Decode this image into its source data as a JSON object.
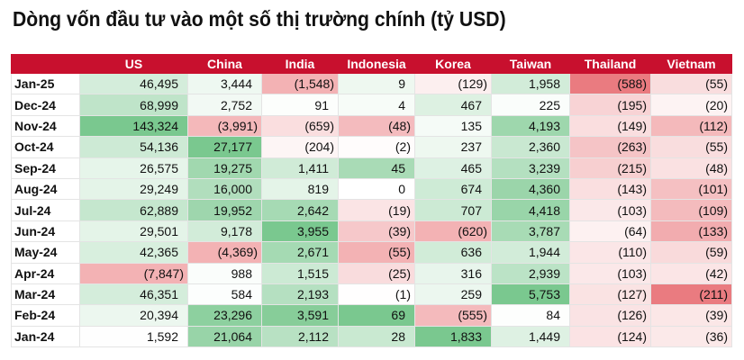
{
  "title": "Dòng vốn đầu tư vào một số thị trường chính (tỷ USD)",
  "table": {
    "header": [
      "",
      "US",
      "China",
      "India",
      "Indonesia",
      "Korea",
      "Taiwan",
      "Thailand",
      "Vietnam"
    ],
    "rows": [
      [
        "Jan-25",
        "46,495",
        "3,444",
        "(1,548)",
        "9",
        "(129)",
        "1,958",
        "(588)",
        "(55)"
      ],
      [
        "Dec-24",
        "68,999",
        "2,752",
        "91",
        "4",
        "467",
        "225",
        "(195)",
        "(20)"
      ],
      [
        "Nov-24",
        "143,324",
        "(3,991)",
        "(659)",
        "(48)",
        "135",
        "4,193",
        "(149)",
        "(112)"
      ],
      [
        "Oct-24",
        "54,136",
        "27,177",
        "(204)",
        "(2)",
        "237",
        "2,360",
        "(263)",
        "(55)"
      ],
      [
        "Sep-24",
        "26,575",
        "19,275",
        "1,411",
        "45",
        "465",
        "3,239",
        "(215)",
        "(48)"
      ],
      [
        "Aug-24",
        "29,249",
        "16,000",
        "819",
        "0",
        "674",
        "4,360",
        "(143)",
        "(101)"
      ],
      [
        "Jul-24",
        "62,889",
        "19,952",
        "2,642",
        "(19)",
        "707",
        "4,418",
        "(103)",
        "(109)"
      ],
      [
        "Jun-24",
        "29,501",
        "9,178",
        "3,955",
        "(39)",
        "(620)",
        "3,787",
        "(64)",
        "(133)"
      ],
      [
        "May-24",
        "42,365",
        "(4,369)",
        "2,671",
        "(55)",
        "636",
        "1,944",
        "(110)",
        "(59)"
      ],
      [
        "Apr-24",
        "(7,847)",
        "988",
        "1,515",
        "(25)",
        "316",
        "2,939",
        "(103)",
        "(42)"
      ],
      [
        "Mar-24",
        "46,351",
        "584",
        "2,193",
        "(1)",
        "259",
        "5,753",
        "(127)",
        "(211)"
      ],
      [
        "Feb-24",
        "20,394",
        "23,296",
        "3,591",
        "69",
        "(555)",
        "84",
        "(126)",
        "(39)"
      ],
      [
        "Jan-24",
        "1,592",
        "21,064",
        "2,112",
        "28",
        "1,833",
        "1,449",
        "(124)",
        "(36)"
      ]
    ]
  }
}
